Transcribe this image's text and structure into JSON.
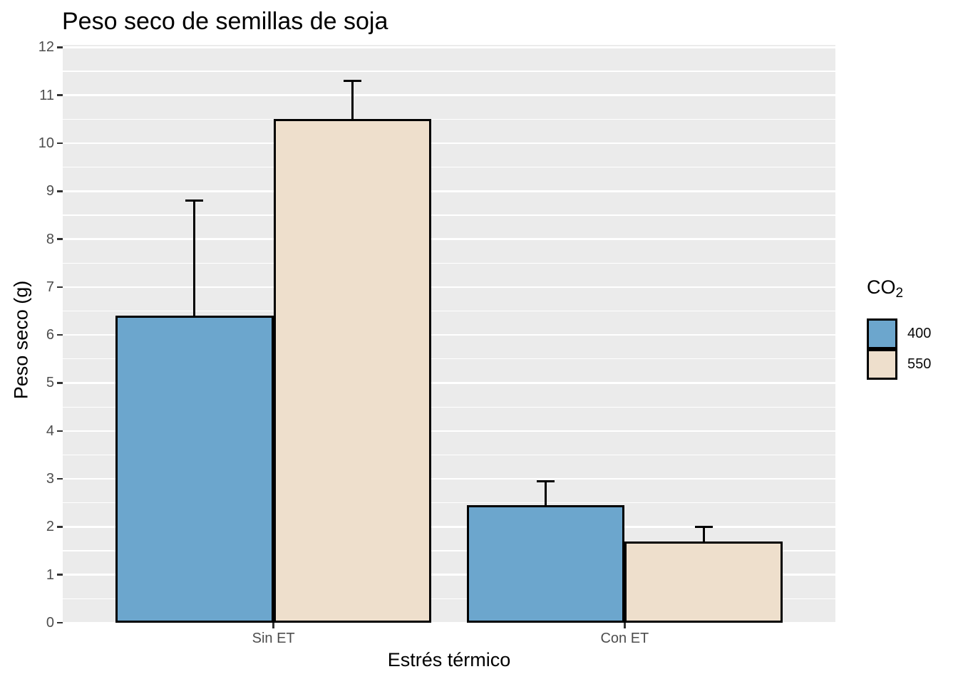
{
  "title": "Peso seco de semillas de soja",
  "axes": {
    "x_label": "Estrés térmico",
    "y_label": "Peso seco (g)"
  },
  "legend": {
    "title_main": "CO",
    "title_sub": "2",
    "items": [
      {
        "label": "400",
        "color": "#6CA6CD"
      },
      {
        "label": "550",
        "color": "#EEDFCC"
      }
    ]
  },
  "colors": {
    "panel_background": "#EBEBEB",
    "gridline": "#FFFFFF",
    "bar_border": "#000000",
    "tick_label": "#4D4D4D",
    "series_400": "#6CA6CD",
    "series_550": "#EEDFCC"
  },
  "chart_data": {
    "type": "bar",
    "title": "Peso seco de semillas de soja",
    "xlabel": "Estrés térmico",
    "ylabel": "Peso seco (g)",
    "categories": [
      "Sin ET",
      "Con ET"
    ],
    "series": [
      {
        "name": "400",
        "color": "#6CA6CD",
        "values": [
          6.4,
          2.45
        ],
        "error_upper": [
          2.4,
          0.5
        ]
      },
      {
        "name": "550",
        "color": "#EEDFCC",
        "values": [
          10.5,
          1.7
        ],
        "error_upper": [
          0.8,
          0.3
        ]
      }
    ],
    "ylim": [
      0,
      12
    ],
    "y_ticks": [
      0,
      1,
      2,
      3,
      4,
      5,
      6,
      7,
      8,
      9,
      10,
      11,
      12
    ],
    "grid": "white major and minor horizontal gridlines on grey panel",
    "legend_position": "right",
    "legend_title": "CO2",
    "error_bars": "upper whisker only with flat cap",
    "bar_style": "dodged, black outline"
  }
}
